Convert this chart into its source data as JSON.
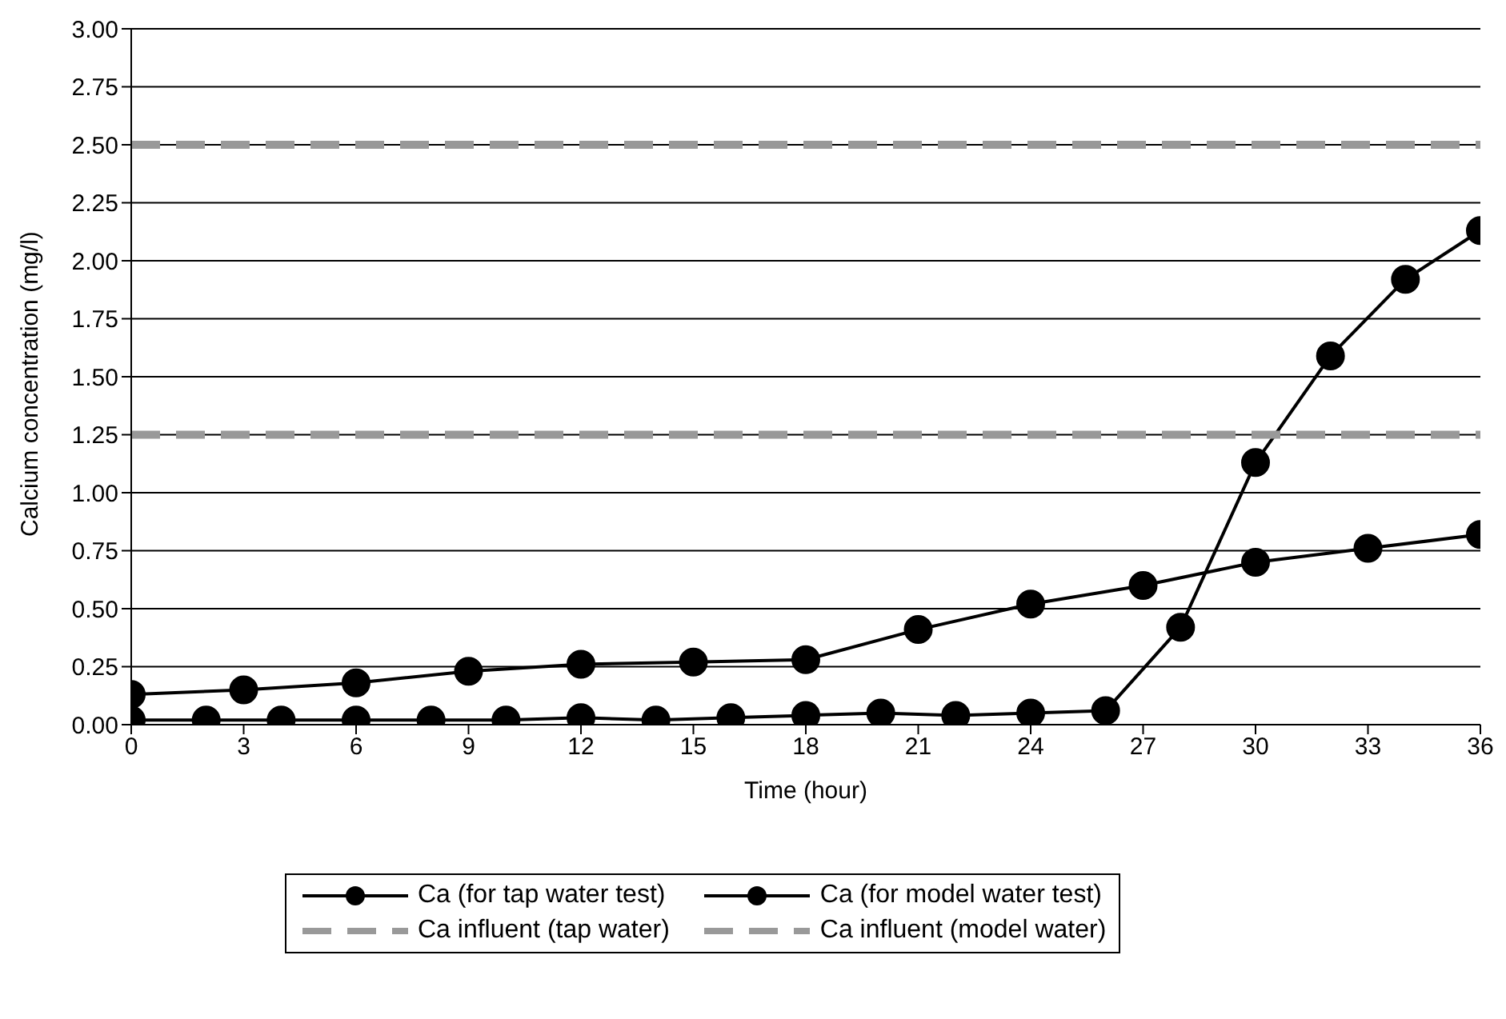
{
  "chart_data": {
    "type": "line",
    "xlabel": "Time (hour)",
    "ylabel": "Calcium concentration (mg/l)",
    "xlim": [
      0,
      36
    ],
    "xticks": [
      0,
      3,
      6,
      9,
      12,
      15,
      18,
      21,
      24,
      27,
      30,
      33,
      36
    ],
    "ylim": [
      0,
      3
    ],
    "yticks": [
      {
        "value": 0,
        "label": "0.00"
      },
      {
        "value": 0.25,
        "label": "0.25"
      },
      {
        "value": 0.5,
        "label": "0.50"
      },
      {
        "value": 0.75,
        "label": "0.75"
      },
      {
        "value": 1,
        "label": "1.00"
      },
      {
        "value": 1.25,
        "label": "1.25"
      },
      {
        "value": 1.5,
        "label": "1.50"
      },
      {
        "value": 1.75,
        "label": "1.75"
      },
      {
        "value": 2,
        "label": "2.00"
      },
      {
        "value": 2.25,
        "label": "2.25"
      },
      {
        "value": 2.5,
        "label": "2.50"
      },
      {
        "value": 2.75,
        "label": "2.75"
      },
      {
        "value": 3,
        "label": "3.00"
      }
    ],
    "grid": "y",
    "legend": "bottom",
    "marker": "circle",
    "series": [
      {
        "name": "Ca (for tap water test)",
        "color": "#000000",
        "x": [
          0,
          3,
          6,
          9,
          12,
          15,
          18,
          21,
          24,
          27,
          30,
          33,
          36
        ],
        "values": [
          0.13,
          0.15,
          0.18,
          0.23,
          0.26,
          0.27,
          0.28,
          0.41,
          0.52,
          0.6,
          0.7,
          0.76,
          0.82
        ]
      },
      {
        "name": "Ca (for model water test)",
        "color": "#000000",
        "x": [
          0,
          2,
          4,
          6,
          8,
          10,
          12,
          14,
          16,
          18,
          20,
          22,
          24,
          26,
          28,
          30,
          32,
          34,
          36
        ],
        "values": [
          0.02,
          0.02,
          0.02,
          0.02,
          0.02,
          0.02,
          0.03,
          0.02,
          0.03,
          0.04,
          0.05,
          0.04,
          0.05,
          0.06,
          0.42,
          1.13,
          1.59,
          1.92,
          2.13
        ]
      },
      {
        "name": "Ca influent (tap water)",
        "color": "#999999",
        "marker": "none",
        "line_style": "dashed",
        "x": [
          0,
          36
        ],
        "values": [
          1.25,
          1.25
        ]
      },
      {
        "name": "Ca influent (model water)",
        "color": "#999999",
        "marker": "none",
        "line_style": "dashed",
        "x": [
          0,
          36
        ],
        "values": [
          2.5,
          2.5
        ]
      }
    ]
  }
}
